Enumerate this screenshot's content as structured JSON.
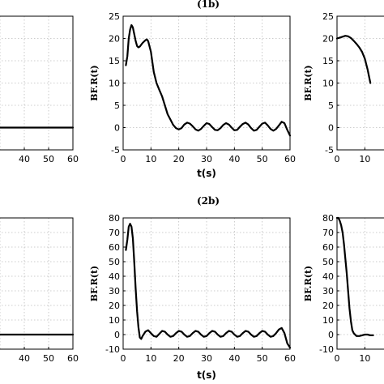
{
  "chart_data": [
    {
      "type": "line",
      "id": "r1-left",
      "title": "",
      "xlabel": "",
      "ylabel": "",
      "xlim": [
        0,
        60
      ],
      "xticks": [
        "40",
        "50",
        "60"
      ],
      "ylim": [
        -5,
        25
      ],
      "yticks": [],
      "grid": true,
      "series": [
        {
          "x": [
            0,
            10,
            20,
            30,
            40,
            50,
            60
          ],
          "y": [
            0,
            0,
            0,
            0,
            0,
            0,
            0
          ]
        }
      ]
    },
    {
      "type": "line",
      "id": "r1-mid",
      "title": "(1b)",
      "xlabel": "t(s)",
      "ylabel": "BF.R(t)",
      "xlim": [
        0,
        60
      ],
      "xticks": [
        "0",
        "10",
        "20",
        "30",
        "40",
        "50",
        "60"
      ],
      "ylim": [
        -5,
        25
      ],
      "yticks": [
        "25",
        "20",
        "15",
        "10",
        "5",
        "0",
        "-5"
      ],
      "grid": true,
      "series": [
        {
          "x": [
            1,
            1.5,
            2,
            2.5,
            3,
            3.5,
            4,
            4.5,
            5,
            5.5,
            6,
            7,
            8,
            8.5,
            9,
            10,
            11,
            12,
            13,
            14,
            15,
            16,
            17,
            18,
            19,
            20,
            21,
            22,
            23,
            24,
            25,
            26,
            27,
            28,
            29,
            30,
            31,
            32,
            33,
            34,
            35,
            36,
            37,
            38,
            39,
            40,
            41,
            42,
            43,
            44,
            45,
            46,
            47,
            48,
            49,
            50,
            51,
            52,
            53,
            54,
            55,
            56,
            57,
            58,
            59,
            60
          ],
          "y": [
            14,
            16,
            20,
            22,
            23,
            22.5,
            21,
            19.5,
            18.3,
            18,
            18.2,
            19,
            19.6,
            19.8,
            19.4,
            17,
            12.5,
            10,
            8.5,
            7,
            5,
            3,
            1.8,
            0.6,
            -0.1,
            -0.4,
            -0.1,
            0.7,
            1.1,
            0.9,
            0.3,
            -0.4,
            -0.7,
            -0.3,
            0.4,
            1.0,
            0.8,
            0.1,
            -0.5,
            -0.6,
            -0.1,
            0.6,
            1.0,
            0.7,
            0,
            -0.6,
            -0.5,
            0.2,
            0.8,
            1.1,
            0.7,
            -0.1,
            -0.7,
            -0.5,
            0.2,
            0.9,
            1.1,
            0.5,
            -0.3,
            -0.7,
            -0.3,
            0.5,
            1.3,
            1.0,
            -0.5,
            -1.8
          ]
        }
      ]
    },
    {
      "type": "line",
      "id": "r1-right",
      "title": "",
      "xlabel": "",
      "ylabel": "BF.R(t)",
      "xlim": [
        0,
        60
      ],
      "xticks": [
        "0",
        "10"
      ],
      "ylim": [
        -5,
        25
      ],
      "yticks": [
        "25",
        "20",
        "15",
        "10",
        "5",
        "0",
        "-5"
      ],
      "grid": true,
      "series": [
        {
          "x": [
            0,
            1,
            2,
            3,
            4,
            5,
            6,
            7,
            8,
            9,
            10,
            11,
            12
          ],
          "y": [
            20,
            20.2,
            20.4,
            20.6,
            20.5,
            20.1,
            19.5,
            18.8,
            18,
            17,
            15.5,
            13,
            10
          ]
        }
      ]
    },
    {
      "type": "line",
      "id": "r2-left",
      "title": "",
      "xlabel": "",
      "ylabel": "",
      "xlim": [
        0,
        60
      ],
      "xticks": [
        "40",
        "50",
        "60"
      ],
      "ylim": [
        -10,
        80
      ],
      "yticks": [],
      "grid": true,
      "series": [
        {
          "x": [
            0,
            10,
            20,
            30,
            40,
            50,
            60
          ],
          "y": [
            0,
            0,
            0,
            0,
            0,
            0,
            0
          ]
        }
      ]
    },
    {
      "type": "line",
      "id": "r2-mid",
      "title": "(2b)",
      "xlabel": "t(s)",
      "ylabel": "BF.R(t)",
      "xlim": [
        0,
        60
      ],
      "xticks": [
        "0",
        "10",
        "20",
        "30",
        "40",
        "50",
        "60"
      ],
      "ylim": [
        -10,
        80
      ],
      "yticks": [
        "80",
        "70",
        "60",
        "50",
        "40",
        "30",
        "20",
        "10",
        "0",
        "-10"
      ],
      "grid": true,
      "series": [
        {
          "x": [
            1,
            1.5,
            2,
            2.5,
            3,
            3.5,
            4,
            4.5,
            5,
            5.5,
            6,
            6.5,
            7,
            8,
            9,
            10,
            11,
            12,
            13,
            14,
            15,
            16,
            17,
            18,
            19,
            20,
            21,
            22,
            23,
            24,
            25,
            26,
            27,
            28,
            29,
            30,
            31,
            32,
            33,
            34,
            35,
            36,
            37,
            38,
            39,
            40,
            41,
            42,
            43,
            44,
            45,
            46,
            47,
            48,
            49,
            50,
            51,
            52,
            53,
            54,
            55,
            56,
            57,
            58,
            59,
            60
          ],
          "y": [
            58,
            65,
            74,
            76,
            74,
            66,
            50,
            32,
            16,
            5,
            -2,
            -3,
            -1,
            2,
            3,
            1,
            -1,
            -1.5,
            0.5,
            2.5,
            2,
            0,
            -1.5,
            -1,
            1,
            2.5,
            2,
            0,
            -1.5,
            -1,
            1,
            2.5,
            2,
            0,
            -1.5,
            -1,
            1,
            2.5,
            2,
            0,
            -1.5,
            -1,
            1,
            2.5,
            2,
            0,
            -1.5,
            -1,
            1,
            2.5,
            2,
            0,
            -1.5,
            -1,
            1,
            2.5,
            2,
            0,
            -1.5,
            -1,
            1,
            3.5,
            4.5,
            1,
            -6,
            -9
          ]
        }
      ]
    },
    {
      "type": "line",
      "id": "r2-right",
      "title": "",
      "xlabel": "",
      "ylabel": "BF.R(t)",
      "xlim": [
        0,
        60
      ],
      "xticks": [
        "0",
        "10"
      ],
      "ylim": [
        -10,
        80
      ],
      "yticks": [
        "80",
        "70",
        "60",
        "50",
        "40",
        "30",
        "20",
        "10",
        "0",
        "-10"
      ],
      "grid": true,
      "series": [
        {
          "x": [
            0,
            0.5,
            1,
            1.5,
            2,
            2.5,
            3,
            3.5,
            4,
            4.5,
            5,
            5.5,
            6,
            7,
            8,
            9,
            10,
            11,
            12,
            13
          ],
          "y": [
            80,
            80,
            78,
            75,
            70,
            62,
            52,
            42,
            30,
            18,
            9,
            3,
            1,
            -1,
            -1,
            -0.5,
            0,
            0,
            -0.5,
            -0.5
          ]
        }
      ]
    }
  ]
}
